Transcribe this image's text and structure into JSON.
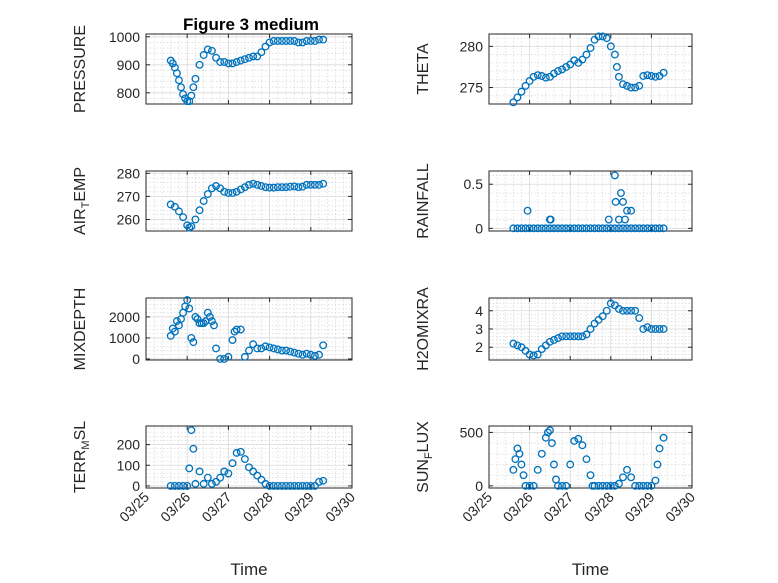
{
  "figure": {
    "title": "Figure 3 medium",
    "xlabel": "Time",
    "marker_color": "#0072BD",
    "x_ticks": [
      "03/25",
      "03/26",
      "03/27",
      "03/28",
      "03/29",
      "03/30"
    ]
  },
  "chart_data": [
    {
      "type": "scatter",
      "title": "Figure 3 medium",
      "ylabel": "PRESSURE",
      "xlim": [
        25,
        30
      ],
      "ylim": [
        760,
        1010
      ],
      "yticks": [
        800,
        900,
        1000
      ],
      "x": [
        25.6,
        25.65,
        25.7,
        25.75,
        25.8,
        25.85,
        25.9,
        25.95,
        26.0,
        26.05,
        26.1,
        26.15,
        26.2,
        26.3,
        26.4,
        26.5,
        26.6,
        26.7,
        26.8,
        26.9,
        27.0,
        27.1,
        27.2,
        27.3,
        27.4,
        27.5,
        27.6,
        27.7,
        27.8,
        27.9,
        28.0,
        28.1,
        28.2,
        28.3,
        28.4,
        28.5,
        28.6,
        28.7,
        28.8,
        28.9,
        29.0,
        29.1,
        29.2,
        29.3
      ],
      "y": [
        915,
        905,
        890,
        870,
        845,
        820,
        795,
        780,
        770,
        770,
        790,
        820,
        850,
        900,
        935,
        955,
        950,
        925,
        910,
        910,
        905,
        905,
        910,
        915,
        920,
        925,
        930,
        930,
        945,
        965,
        980,
        985,
        985,
        985,
        985,
        985,
        985,
        980,
        980,
        985,
        985,
        985,
        990,
        990
      ]
    },
    {
      "type": "scatter",
      "ylabel": "THETA",
      "xlim": [
        25,
        30
      ],
      "ylim": [
        273,
        281.5
      ],
      "yticks": [
        275,
        280
      ],
      "x": [
        25.6,
        25.7,
        25.8,
        25.9,
        26.0,
        26.1,
        26.2,
        26.3,
        26.4,
        26.5,
        26.6,
        26.7,
        26.8,
        26.9,
        27.0,
        27.1,
        27.2,
        27.3,
        27.4,
        27.5,
        27.6,
        27.7,
        27.8,
        27.9,
        28.0,
        28.1,
        28.15,
        28.2,
        28.3,
        28.4,
        28.5,
        28.6,
        28.7,
        28.8,
        28.9,
        29.0,
        29.1,
        29.2,
        29.3
      ],
      "y": [
        273.2,
        273.8,
        274.5,
        275.2,
        275.8,
        276.3,
        276.5,
        276.4,
        276.2,
        276.3,
        276.7,
        277.0,
        277.2,
        277.5,
        277.8,
        278.3,
        278.0,
        278.4,
        279.0,
        279.8,
        280.8,
        281.2,
        281.2,
        281.0,
        280.0,
        279.0,
        277.5,
        276.3,
        275.4,
        275.2,
        275.0,
        275.0,
        275.2,
        276.4,
        276.5,
        276.4,
        276.3,
        276.4,
        276.8
      ]
    },
    {
      "type": "scatter",
      "ylabel": "AIR_TEMP",
      "xlim": [
        25,
        30
      ],
      "ylim": [
        255,
        281
      ],
      "yticks": [
        260,
        270,
        280
      ],
      "x": [
        25.6,
        25.7,
        25.8,
        25.9,
        26.0,
        26.05,
        26.1,
        26.2,
        26.3,
        26.4,
        26.5,
        26.6,
        26.7,
        26.8,
        26.9,
        27.0,
        27.1,
        27.2,
        27.3,
        27.4,
        27.5,
        27.6,
        27.7,
        27.8,
        27.9,
        28.0,
        28.1,
        28.2,
        28.3,
        28.4,
        28.5,
        28.6,
        28.7,
        28.8,
        28.9,
        29.0,
        29.1,
        29.2,
        29.3
      ],
      "y": [
        266.5,
        265.5,
        263.5,
        261.0,
        257.5,
        256.5,
        257.0,
        260.0,
        264.0,
        268.0,
        271.0,
        273.5,
        274.5,
        273.5,
        272.0,
        271.5,
        271.5,
        272.0,
        273.0,
        274.0,
        275.0,
        275.5,
        275.0,
        274.5,
        274.0,
        273.8,
        273.8,
        274.0,
        274.0,
        274.0,
        274.2,
        274.3,
        274.0,
        274.2,
        275.0,
        275.0,
        275.0,
        275.0,
        275.5
      ]
    },
    {
      "type": "scatter",
      "ylabel": "RAINFALL",
      "xlim": [
        25,
        30
      ],
      "ylim": [
        -0.03,
        0.65
      ],
      "yticks": [
        0,
        0.5
      ],
      "x": [
        25.6,
        25.7,
        25.8,
        25.9,
        26.0,
        26.1,
        26.2,
        26.3,
        26.4,
        26.5,
        26.6,
        26.7,
        26.8,
        26.9,
        27.0,
        27.1,
        27.2,
        27.3,
        27.4,
        27.5,
        27.6,
        27.7,
        27.8,
        27.9,
        28.0,
        28.1,
        28.2,
        28.3,
        28.4,
        28.5,
        28.6,
        28.7,
        28.8,
        28.9,
        29.0,
        29.1,
        29.2,
        29.3,
        25.95,
        26.5,
        26.52,
        27.95,
        28.1,
        28.12,
        28.2,
        28.25,
        28.3,
        28.35,
        28.4,
        28.5
      ],
      "y": [
        0,
        0,
        0,
        0,
        0,
        0,
        0,
        0,
        0,
        0,
        0,
        0,
        0,
        0,
        0,
        0,
        0,
        0,
        0,
        0,
        0,
        0,
        0,
        0,
        0,
        0,
        0,
        0,
        0,
        0,
        0,
        0,
        0,
        0,
        0,
        0,
        0,
        0,
        0.2,
        0.1,
        0.1,
        0.1,
        0.6,
        0.3,
        0.1,
        0.4,
        0.3,
        0.1,
        0.2,
        0.2
      ]
    },
    {
      "type": "scatter",
      "ylabel": "MIXDEPTH",
      "xlim": [
        25,
        30
      ],
      "ylim": [
        -50,
        2900
      ],
      "yticks": [
        0,
        1000,
        2000
      ],
      "x": [
        25.6,
        25.65,
        25.7,
        25.75,
        25.8,
        25.85,
        25.9,
        25.95,
        26.0,
        26.05,
        26.1,
        26.15,
        26.2,
        26.25,
        26.3,
        26.35,
        26.4,
        26.45,
        26.5,
        26.55,
        26.6,
        26.65,
        26.7,
        26.8,
        26.9,
        27.0,
        27.1,
        27.15,
        27.2,
        27.3,
        27.4,
        27.5,
        27.6,
        27.7,
        27.8,
        27.9,
        28.0,
        28.1,
        28.2,
        28.3,
        28.4,
        28.5,
        28.6,
        28.7,
        28.8,
        28.9,
        29.0,
        29.1,
        29.2,
        29.3
      ],
      "y": [
        1100,
        1450,
        1300,
        1800,
        1600,
        1900,
        2200,
        2500,
        2800,
        2400,
        1000,
        800,
        2000,
        1900,
        1700,
        1700,
        1700,
        1800,
        2200,
        2000,
        1800,
        1600,
        500,
        0,
        0,
        100,
        900,
        1300,
        1400,
        1400,
        100,
        400,
        700,
        500,
        500,
        600,
        550,
        500,
        450,
        400,
        400,
        350,
        300,
        250,
        200,
        250,
        200,
        150,
        200,
        650
      ]
    },
    {
      "type": "scatter",
      "ylabel": "H2OMIXRA",
      "xlim": [
        25,
        30
      ],
      "ylim": [
        1.3,
        4.7
      ],
      "yticks": [
        2,
        3,
        4
      ],
      "x": [
        25.6,
        25.7,
        25.8,
        25.9,
        26.0,
        26.1,
        26.2,
        26.3,
        26.4,
        26.5,
        26.6,
        26.7,
        26.8,
        26.9,
        27.0,
        27.1,
        27.2,
        27.3,
        27.4,
        27.5,
        27.6,
        27.7,
        27.8,
        27.9,
        28.0,
        28.1,
        28.2,
        28.3,
        28.4,
        28.5,
        28.6,
        28.7,
        28.8,
        28.9,
        29.0,
        29.1,
        29.2,
        29.3
      ],
      "y": [
        2.2,
        2.1,
        2.0,
        1.8,
        1.6,
        1.55,
        1.6,
        1.9,
        2.1,
        2.3,
        2.4,
        2.5,
        2.6,
        2.6,
        2.6,
        2.6,
        2.6,
        2.6,
        2.7,
        3.0,
        3.3,
        3.5,
        3.7,
        4.0,
        4.4,
        4.3,
        4.1,
        4.0,
        4.0,
        4.0,
        4.0,
        3.6,
        3.0,
        3.1,
        3.0,
        3.0,
        3.0,
        3.0
      ]
    },
    {
      "type": "scatter",
      "ylabel": "TERR_MSL",
      "xlim": [
        25,
        30
      ],
      "ylim": [
        -10,
        290
      ],
      "yticks": [
        0,
        100,
        200
      ],
      "x": [
        25.6,
        25.7,
        25.8,
        25.9,
        26.0,
        26.05,
        26.1,
        26.15,
        26.2,
        26.3,
        26.4,
        26.5,
        26.6,
        26.7,
        26.8,
        26.9,
        27.0,
        27.1,
        27.2,
        27.3,
        27.4,
        27.5,
        27.6,
        27.7,
        27.8,
        27.9,
        28.0,
        28.1,
        28.2,
        28.3,
        28.4,
        28.5,
        28.6,
        28.7,
        28.8,
        28.9,
        29.0,
        29.1,
        29.2,
        29.3
      ],
      "y": [
        0,
        0,
        0,
        0,
        0,
        85,
        270,
        180,
        10,
        70,
        10,
        40,
        10,
        20,
        40,
        70,
        60,
        110,
        160,
        165,
        130,
        90,
        70,
        50,
        30,
        10,
        0,
        0,
        0,
        0,
        0,
        0,
        0,
        0,
        0,
        0,
        0,
        0,
        20,
        25
      ]
    },
    {
      "type": "scatter",
      "ylabel": "SUN_FLUX",
      "xlim": [
        25,
        30
      ],
      "ylim": [
        -20,
        560
      ],
      "yticks": [
        0,
        500
      ],
      "x": [
        25.6,
        25.65,
        25.7,
        25.75,
        25.8,
        25.85,
        25.9,
        26.0,
        26.1,
        26.2,
        26.3,
        26.4,
        26.45,
        26.5,
        26.55,
        26.6,
        26.65,
        26.7,
        26.8,
        26.9,
        27.0,
        27.1,
        27.2,
        27.3,
        27.4,
        27.5,
        27.55,
        27.6,
        27.7,
        27.8,
        27.9,
        28.0,
        28.1,
        28.2,
        28.3,
        28.4,
        28.5,
        28.6,
        28.7,
        28.8,
        28.9,
        29.0,
        29.1,
        29.15,
        29.2,
        29.3
      ],
      "y": [
        150,
        250,
        350,
        300,
        200,
        100,
        0,
        0,
        0,
        150,
        300,
        450,
        500,
        520,
        400,
        200,
        60,
        0,
        0,
        0,
        200,
        420,
        440,
        380,
        250,
        100,
        0,
        0,
        0,
        0,
        0,
        0,
        0,
        20,
        80,
        150,
        80,
        0,
        0,
        0,
        0,
        0,
        50,
        200,
        350,
        450
      ]
    }
  ]
}
